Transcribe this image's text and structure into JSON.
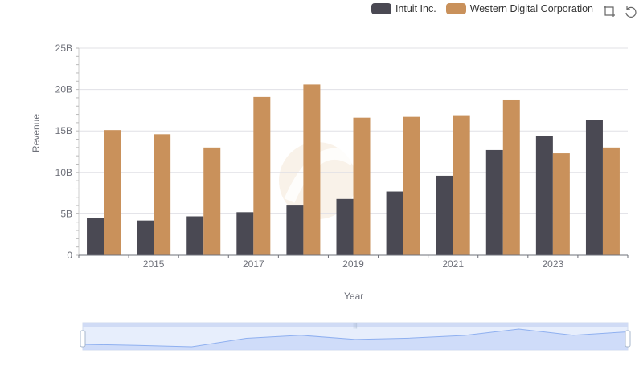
{
  "legend": {
    "items": [
      {
        "label": "Intuit Inc.",
        "color": "#4a4953"
      },
      {
        "label": "Western Digital Corporation",
        "color": "#c9915b"
      }
    ]
  },
  "toolbox": {
    "icons": [
      "zoom-icon",
      "restore-icon"
    ]
  },
  "chart_data": {
    "type": "bar",
    "categories": [
      "2014",
      "2015",
      "2016",
      "2017",
      "2018",
      "2019",
      "2020",
      "2021",
      "2022",
      "2023",
      "2024"
    ],
    "x_tick_labels": [
      "2015",
      "2017",
      "2019",
      "2021",
      "2023"
    ],
    "series": [
      {
        "name": "Intuit Inc.",
        "color": "#4a4953",
        "values": [
          4.5,
          4.2,
          4.7,
          5.2,
          6.0,
          6.8,
          7.7,
          9.6,
          12.7,
          14.4,
          16.3
        ]
      },
      {
        "name": "Western Digital Corporation",
        "color": "#c9915b",
        "values": [
          15.1,
          14.6,
          13.0,
          19.1,
          20.6,
          16.6,
          16.7,
          16.9,
          18.8,
          12.3,
          13.0
        ]
      }
    ],
    "xlabel": "Year",
    "ylabel": "Revenue",
    "ylim": [
      0,
      25
    ],
    "y_ticks": [
      "0",
      "5B",
      "10B",
      "15B",
      "20B",
      "25B"
    ],
    "grid": true,
    "legend_position": "top-right"
  }
}
